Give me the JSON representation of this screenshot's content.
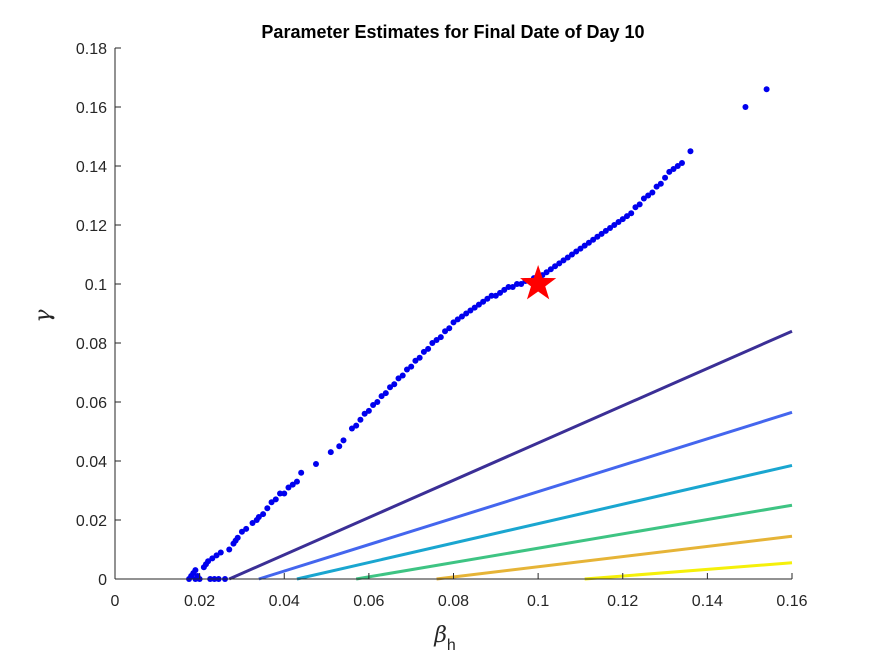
{
  "chart_data": {
    "type": "scatter",
    "title": "Parameter Estimates for Final Date of Day 10",
    "xlabel": "β",
    "xlabel_sub": "h",
    "ylabel": "γ",
    "xlim": [
      0,
      0.16
    ],
    "ylim": [
      0,
      0.18
    ],
    "xticks": [
      0,
      0.02,
      0.04,
      0.06,
      0.08,
      0.1,
      0.12,
      0.14,
      0.16
    ],
    "yticks": [
      0,
      0.02,
      0.04,
      0.06,
      0.08,
      0.1,
      0.12,
      0.14,
      0.16,
      0.18
    ],
    "xtick_labels": [
      "0",
      "0.02",
      "0.04",
      "0.06",
      "0.08",
      "0.1",
      "0.12",
      "0.14",
      "0.16"
    ],
    "ytick_labels": [
      "0",
      "0.02",
      "0.04",
      "0.06",
      "0.08",
      "0.1",
      "0.12",
      "0.14",
      "0.16",
      "0.18"
    ],
    "grid": false,
    "points_color": "#0000ee",
    "points": [
      [
        0.0175,
        0.0
      ],
      [
        0.018,
        0.001
      ],
      [
        0.0185,
        0.002
      ],
      [
        0.019,
        0.003
      ],
      [
        0.019,
        0.0
      ],
      [
        0.0195,
        0.001
      ],
      [
        0.02,
        0.0
      ],
      [
        0.021,
        0.004
      ],
      [
        0.0215,
        0.005
      ],
      [
        0.022,
        0.006
      ],
      [
        0.0225,
        0.0
      ],
      [
        0.023,
        0.007
      ],
      [
        0.0235,
        0.0
      ],
      [
        0.024,
        0.008
      ],
      [
        0.0245,
        0.0
      ],
      [
        0.025,
        0.009
      ],
      [
        0.026,
        0.0
      ],
      [
        0.027,
        0.01
      ],
      [
        0.028,
        0.012
      ],
      [
        0.029,
        0.014
      ],
      [
        0.0285,
        0.013
      ],
      [
        0.03,
        0.016
      ],
      [
        0.031,
        0.017
      ],
      [
        0.0325,
        0.019
      ],
      [
        0.0335,
        0.02
      ],
      [
        0.034,
        0.021
      ],
      [
        0.035,
        0.022
      ],
      [
        0.036,
        0.024
      ],
      [
        0.037,
        0.026
      ],
      [
        0.038,
        0.027
      ],
      [
        0.039,
        0.029
      ],
      [
        0.04,
        0.029
      ],
      [
        0.041,
        0.031
      ],
      [
        0.042,
        0.032
      ],
      [
        0.043,
        0.033
      ],
      [
        0.044,
        0.036
      ],
      [
        0.0475,
        0.039
      ],
      [
        0.051,
        0.043
      ],
      [
        0.053,
        0.045
      ],
      [
        0.054,
        0.047
      ],
      [
        0.056,
        0.051
      ],
      [
        0.057,
        0.052
      ],
      [
        0.058,
        0.054
      ],
      [
        0.059,
        0.056
      ],
      [
        0.06,
        0.057
      ],
      [
        0.061,
        0.059
      ],
      [
        0.062,
        0.06
      ],
      [
        0.063,
        0.062
      ],
      [
        0.064,
        0.063
      ],
      [
        0.065,
        0.065
      ],
      [
        0.066,
        0.066
      ],
      [
        0.067,
        0.068
      ],
      [
        0.068,
        0.069
      ],
      [
        0.069,
        0.071
      ],
      [
        0.07,
        0.072
      ],
      [
        0.071,
        0.074
      ],
      [
        0.072,
        0.075
      ],
      [
        0.073,
        0.077
      ],
      [
        0.074,
        0.078
      ],
      [
        0.075,
        0.08
      ],
      [
        0.076,
        0.081
      ],
      [
        0.077,
        0.082
      ],
      [
        0.078,
        0.084
      ],
      [
        0.079,
        0.085
      ],
      [
        0.08,
        0.087
      ],
      [
        0.081,
        0.088
      ],
      [
        0.082,
        0.089
      ],
      [
        0.083,
        0.09
      ],
      [
        0.084,
        0.091
      ],
      [
        0.085,
        0.092
      ],
      [
        0.086,
        0.093
      ],
      [
        0.087,
        0.094
      ],
      [
        0.088,
        0.095
      ],
      [
        0.089,
        0.096
      ],
      [
        0.09,
        0.096
      ],
      [
        0.091,
        0.097
      ],
      [
        0.092,
        0.098
      ],
      [
        0.093,
        0.099
      ],
      [
        0.094,
        0.099
      ],
      [
        0.095,
        0.1
      ],
      [
        0.096,
        0.1
      ],
      [
        0.097,
        0.101
      ],
      [
        0.098,
        0.101
      ],
      [
        0.099,
        0.102
      ],
      [
        0.1,
        0.103
      ],
      [
        0.101,
        0.103
      ],
      [
        0.102,
        0.104
      ],
      [
        0.103,
        0.105
      ],
      [
        0.104,
        0.106
      ],
      [
        0.105,
        0.107
      ],
      [
        0.106,
        0.108
      ],
      [
        0.107,
        0.109
      ],
      [
        0.108,
        0.11
      ],
      [
        0.109,
        0.111
      ],
      [
        0.11,
        0.112
      ],
      [
        0.111,
        0.113
      ],
      [
        0.112,
        0.114
      ],
      [
        0.113,
        0.115
      ],
      [
        0.114,
        0.116
      ],
      [
        0.115,
        0.117
      ],
      [
        0.116,
        0.118
      ],
      [
        0.117,
        0.119
      ],
      [
        0.118,
        0.12
      ],
      [
        0.119,
        0.121
      ],
      [
        0.12,
        0.122
      ],
      [
        0.121,
        0.123
      ],
      [
        0.122,
        0.124
      ],
      [
        0.123,
        0.126
      ],
      [
        0.124,
        0.127
      ],
      [
        0.125,
        0.129
      ],
      [
        0.126,
        0.13
      ],
      [
        0.127,
        0.131
      ],
      [
        0.128,
        0.133
      ],
      [
        0.129,
        0.134
      ],
      [
        0.13,
        0.136
      ],
      [
        0.131,
        0.138
      ],
      [
        0.132,
        0.139
      ],
      [
        0.133,
        0.14
      ],
      [
        0.134,
        0.141
      ],
      [
        0.136,
        0.145
      ],
      [
        0.149,
        0.16
      ],
      [
        0.154,
        0.166
      ]
    ],
    "true_value": {
      "x": 0.1,
      "y": 0.1,
      "color": "#ff0000",
      "marker": "star"
    },
    "lines": [
      {
        "color": "#3b2f96",
        "x": [
          0.027,
          0.16
        ],
        "y": [
          0.0,
          0.084
        ]
      },
      {
        "color": "#4466ee",
        "x": [
          0.034,
          0.16
        ],
        "y": [
          0.0,
          0.0565
        ]
      },
      {
        "color": "#1aa6d0",
        "x": [
          0.043,
          0.16
        ],
        "y": [
          0.0,
          0.0385
        ]
      },
      {
        "color": "#3ec483",
        "x": [
          0.057,
          0.16
        ],
        "y": [
          0.0,
          0.025
        ]
      },
      {
        "color": "#e6b437",
        "x": [
          0.076,
          0.16
        ],
        "y": [
          0.0,
          0.0145
        ]
      },
      {
        "color": "#f5f00a",
        "x": [
          0.111,
          0.16
        ],
        "y": [
          0.0,
          0.0055
        ]
      }
    ]
  }
}
